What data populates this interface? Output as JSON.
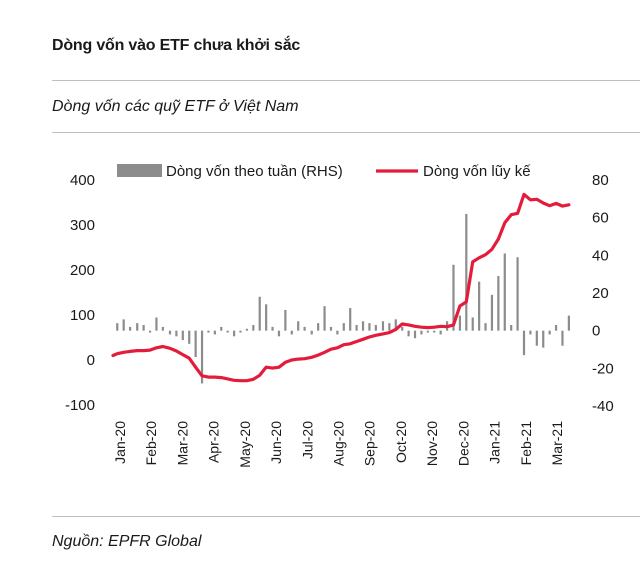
{
  "header": {
    "title": "Dòng vốn vào ETF chưa khởi sắc",
    "subtitle": "Dòng vốn các quỹ ETF ở Việt Nam"
  },
  "footer": {
    "source": "Nguồn: EPFR Global"
  },
  "colors": {
    "bars": "#8c8c8c",
    "line": "#e41c3c",
    "text": "#1a1a1a"
  },
  "chart_data": {
    "type": "bar+line",
    "title": "Dòng vốn các quỹ ETF ở Việt Nam",
    "legend": [
      {
        "name": "Dòng vốn theo tuần (RHS)",
        "kind": "bar",
        "axis": "right"
      },
      {
        "name": "Dòng vốn lũy kế",
        "kind": "line",
        "axis": "left"
      }
    ],
    "legend_position": "top",
    "left_axis": {
      "min": -100,
      "max": 400,
      "ticks": [
        "-100",
        "0",
        "100",
        "200",
        "300",
        "400"
      ]
    },
    "right_axis": {
      "min": -40,
      "max": 80,
      "ticks": [
        "-40",
        "-20",
        "0",
        "20",
        "40",
        "60",
        "80"
      ]
    },
    "x_ticks": [
      "Jan-20",
      "Feb-20",
      "Mar-20",
      "Apr-20",
      "May-20",
      "Jun-20",
      "Jul-20",
      "Aug-20",
      "Sep-20",
      "Oct-20",
      "Nov-20",
      "Dec-20",
      "Jan-21",
      "Feb-21",
      "Mar-21"
    ],
    "x_domain_weeks": 65,
    "weekly_flows": [
      {
        "week": 0.6,
        "value": 4
      },
      {
        "week": 1.5,
        "value": 6
      },
      {
        "week": 2.4,
        "value": 2
      },
      {
        "week": 3.4,
        "value": 4
      },
      {
        "week": 4.3,
        "value": 3
      },
      {
        "week": 5.2,
        "value": -1
      },
      {
        "week": 6.1,
        "value": 7
      },
      {
        "week": 7.0,
        "value": 2
      },
      {
        "week": 8.0,
        "value": -2
      },
      {
        "week": 8.9,
        "value": -3
      },
      {
        "week": 9.8,
        "value": -5
      },
      {
        "week": 10.7,
        "value": -7
      },
      {
        "week": 11.6,
        "value": -14
      },
      {
        "week": 12.5,
        "value": -28
      },
      {
        "week": 13.4,
        "value": -1
      },
      {
        "week": 14.3,
        "value": -2
      },
      {
        "week": 15.2,
        "value": 2
      },
      {
        "week": 16.1,
        "value": -1
      },
      {
        "week": 17.0,
        "value": -3
      },
      {
        "week": 17.9,
        "value": -1
      },
      {
        "week": 18.8,
        "value": 1
      },
      {
        "week": 19.7,
        "value": 3
      },
      {
        "week": 20.6,
        "value": 18
      },
      {
        "week": 21.5,
        "value": 14
      },
      {
        "week": 22.4,
        "value": 2
      },
      {
        "week": 23.3,
        "value": -3
      },
      {
        "week": 24.2,
        "value": 11
      },
      {
        "week": 25.1,
        "value": -2
      },
      {
        "week": 26.0,
        "value": 5
      },
      {
        "week": 26.9,
        "value": 2
      },
      {
        "week": 27.9,
        "value": -2
      },
      {
        "week": 28.8,
        "value": 4
      },
      {
        "week": 29.7,
        "value": 13
      },
      {
        "week": 30.6,
        "value": 2
      },
      {
        "week": 31.5,
        "value": -2
      },
      {
        "week": 32.4,
        "value": 4
      },
      {
        "week": 33.3,
        "value": 12
      },
      {
        "week": 34.2,
        "value": 3
      },
      {
        "week": 35.1,
        "value": 5
      },
      {
        "week": 36.0,
        "value": 4
      },
      {
        "week": 36.9,
        "value": 3
      },
      {
        "week": 37.9,
        "value": 5
      },
      {
        "week": 38.8,
        "value": 4
      },
      {
        "week": 39.7,
        "value": 6
      },
      {
        "week": 40.6,
        "value": 2
      },
      {
        "week": 41.5,
        "value": -3
      },
      {
        "week": 42.4,
        "value": -4
      },
      {
        "week": 43.3,
        "value": -2
      },
      {
        "week": 44.2,
        "value": -1
      },
      {
        "week": 45.1,
        "value": -1
      },
      {
        "week": 46.0,
        "value": -2
      },
      {
        "week": 46.9,
        "value": 5
      },
      {
        "week": 47.8,
        "value": 35
      },
      {
        "week": 48.7,
        "value": 8
      },
      {
        "week": 49.6,
        "value": 62
      },
      {
        "week": 50.5,
        "value": 7
      },
      {
        "week": 51.4,
        "value": 26
      },
      {
        "week": 52.3,
        "value": 4
      },
      {
        "week": 53.2,
        "value": 19
      },
      {
        "week": 54.1,
        "value": 29
      },
      {
        "week": 55.0,
        "value": 41
      },
      {
        "week": 55.9,
        "value": 3
      },
      {
        "week": 56.8,
        "value": 39
      },
      {
        "week": 57.7,
        "value": -13
      },
      {
        "week": 58.6,
        "value": -2
      },
      {
        "week": 59.5,
        "value": -8
      },
      {
        "week": 60.4,
        "value": -9
      },
      {
        "week": 61.3,
        "value": -2
      },
      {
        "week": 62.2,
        "value": 3
      },
      {
        "week": 63.1,
        "value": -8
      },
      {
        "week": 64.0,
        "value": 8
      }
    ],
    "cumulative_flow": [
      {
        "week": 0.0,
        "value": 10
      },
      {
        "week": 0.6,
        "value": 14
      },
      {
        "week": 1.5,
        "value": 17
      },
      {
        "week": 2.4,
        "value": 19
      },
      {
        "week": 3.4,
        "value": 21
      },
      {
        "week": 4.3,
        "value": 21
      },
      {
        "week": 5.2,
        "value": 22
      },
      {
        "week": 6.1,
        "value": 27
      },
      {
        "week": 7.0,
        "value": 30
      },
      {
        "week": 8.0,
        "value": 26
      },
      {
        "week": 8.9,
        "value": 20
      },
      {
        "week": 9.8,
        "value": 12
      },
      {
        "week": 10.7,
        "value": 4
      },
      {
        "week": 11.6,
        "value": -16
      },
      {
        "week": 12.5,
        "value": -35
      },
      {
        "week": 13.4,
        "value": -38
      },
      {
        "week": 14.3,
        "value": -38
      },
      {
        "week": 15.2,
        "value": -39
      },
      {
        "week": 16.1,
        "value": -42
      },
      {
        "week": 17.0,
        "value": -45
      },
      {
        "week": 17.9,
        "value": -46
      },
      {
        "week": 18.8,
        "value": -46
      },
      {
        "week": 19.7,
        "value": -43
      },
      {
        "week": 20.6,
        "value": -34
      },
      {
        "week": 21.5,
        "value": -16
      },
      {
        "week": 22.4,
        "value": -18
      },
      {
        "week": 23.3,
        "value": -16
      },
      {
        "week": 24.2,
        "value": -5
      },
      {
        "week": 25.1,
        "value": 0
      },
      {
        "week": 26.0,
        "value": 2
      },
      {
        "week": 26.9,
        "value": 3
      },
      {
        "week": 27.9,
        "value": 6
      },
      {
        "week": 28.8,
        "value": 11
      },
      {
        "week": 29.7,
        "value": 17
      },
      {
        "week": 30.6,
        "value": 24
      },
      {
        "week": 31.5,
        "value": 27
      },
      {
        "week": 32.4,
        "value": 34
      },
      {
        "week": 33.3,
        "value": 36
      },
      {
        "week": 34.2,
        "value": 41
      },
      {
        "week": 35.1,
        "value": 46
      },
      {
        "week": 36.0,
        "value": 51
      },
      {
        "week": 36.9,
        "value": 55
      },
      {
        "week": 37.9,
        "value": 58
      },
      {
        "week": 38.8,
        "value": 61
      },
      {
        "week": 39.7,
        "value": 68
      },
      {
        "week": 40.6,
        "value": 80
      },
      {
        "week": 41.5,
        "value": 78
      },
      {
        "week": 42.4,
        "value": 75
      },
      {
        "week": 43.3,
        "value": 73
      },
      {
        "week": 44.2,
        "value": 72
      },
      {
        "week": 45.1,
        "value": 73
      },
      {
        "week": 46.0,
        "value": 75
      },
      {
        "week": 46.9,
        "value": 74
      },
      {
        "week": 47.8,
        "value": 78
      },
      {
        "week": 48.7,
        "value": 120
      },
      {
        "week": 49.6,
        "value": 129
      },
      {
        "week": 50.5,
        "value": 218
      },
      {
        "week": 51.4,
        "value": 227
      },
      {
        "week": 52.3,
        "value": 234
      },
      {
        "week": 53.2,
        "value": 246
      },
      {
        "week": 54.1,
        "value": 269
      },
      {
        "week": 55.0,
        "value": 305
      },
      {
        "week": 55.9,
        "value": 323
      },
      {
        "week": 56.8,
        "value": 326
      },
      {
        "week": 57.7,
        "value": 368
      },
      {
        "week": 58.6,
        "value": 356
      },
      {
        "week": 59.5,
        "value": 357
      },
      {
        "week": 60.4,
        "value": 349
      },
      {
        "week": 61.3,
        "value": 343
      },
      {
        "week": 62.2,
        "value": 348
      },
      {
        "week": 63.1,
        "value": 342
      },
      {
        "week": 64.0,
        "value": 345
      }
    ]
  }
}
